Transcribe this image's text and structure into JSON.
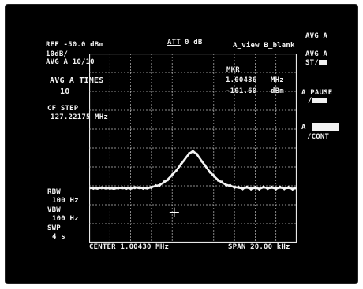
{
  "header": {
    "ref_level": "REF -50.0 dBm",
    "attenuation_label": "ATT",
    "attenuation_value": "0 dB",
    "view_state": "A_view B_blank",
    "scale": "10dB/",
    "average_count": "AVG A 10/10"
  },
  "average_times": {
    "label": "AVG A TIMES",
    "value": "10"
  },
  "cf_step": {
    "label": "CF STEP",
    "value": "127.22175 MHz"
  },
  "marker": {
    "label": "MKR",
    "frequency": "1.00436",
    "frequency_unit": "MHz",
    "level": "-101.60",
    "level_unit": "dBm"
  },
  "left_settings": {
    "rbw_label": "RBW",
    "rbw_value": "100 Hz",
    "vbw_label": "VBW",
    "vbw_value": "100 Hz",
    "swp_label": "SWP",
    "swp_value": "4 s"
  },
  "footer": {
    "center": "CENTER 1.00430 MHz",
    "span": "SPAN 20.00 kHz"
  },
  "softkeys": [
    {
      "line1": "AVG A",
      "line2": ""
    },
    {
      "line1": "AVG A",
      "line2": "ST/"
    },
    {
      "line1": "A PAUSE",
      "line2": "/"
    },
    {
      "line1": "A",
      "line2": "/CONT"
    }
  ],
  "trace": {
    "x": [
      0,
      0.02,
      0.04,
      0.06,
      0.08,
      0.1,
      0.12,
      0.14,
      0.16,
      0.18,
      0.2,
      0.22,
      0.24,
      0.26,
      0.28,
      0.3,
      0.32,
      0.34,
      0.36,
      0.38,
      0.4,
      0.42,
      0.44,
      0.46,
      0.48,
      0.5,
      0.52,
      0.54,
      0.56,
      0.58,
      0.6,
      0.62,
      0.64,
      0.66,
      0.68,
      0.7,
      0.72,
      0.74,
      0.76,
      0.78,
      0.8,
      0.82,
      0.84,
      0.86,
      0.88,
      0.9,
      0.92,
      0.94,
      0.96,
      0.98,
      1.0
    ],
    "y": [
      -121.3,
      -121.0,
      -121.5,
      -120.8,
      -121.4,
      -121.1,
      -121.6,
      -120.9,
      -121.3,
      -121.0,
      -121.5,
      -120.7,
      -121.2,
      -121.0,
      -121.4,
      -120.6,
      -120.2,
      -119.5,
      -118.2,
      -116.5,
      -114.3,
      -111.8,
      -109.0,
      -106.0,
      -103.2,
      -101.6,
      -103.5,
      -106.5,
      -109.6,
      -112.4,
      -114.8,
      -116.8,
      -118.3,
      -119.4,
      -120.1,
      -120.6,
      -121.0,
      -121.3,
      -120.9,
      -121.4,
      -121.1,
      -121.5,
      -120.8,
      -121.2,
      -121.0,
      -121.4,
      -120.9,
      -121.3,
      -121.1,
      -121.5,
      -121.2
    ],
    "ref_level_dbm": -50,
    "db_per_division": 10,
    "divisions": 10
  }
}
